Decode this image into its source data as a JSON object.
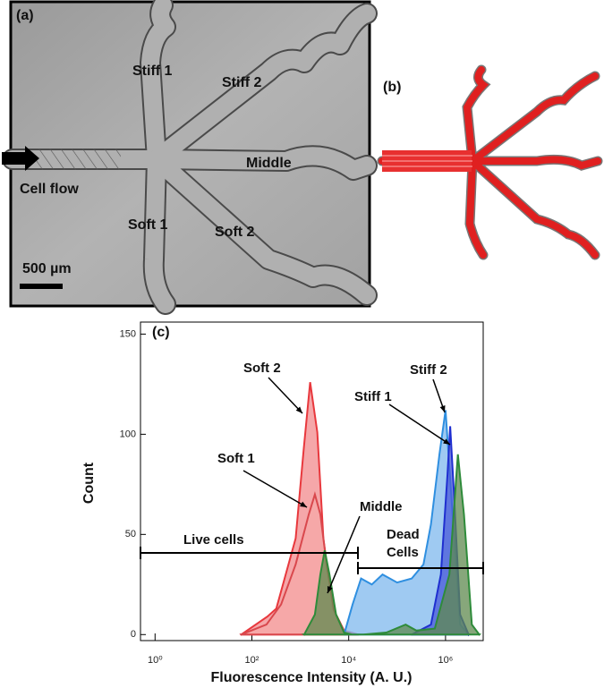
{
  "panels": {
    "a": {
      "label": "(a)",
      "texts": [
        "Stiff 1",
        "Stiff 2",
        "Middle",
        "Cell flow",
        "Soft 1",
        "Soft 2",
        "500 µm"
      ]
    },
    "b": {
      "label": "(b)"
    }
  },
  "chart_data": {
    "type": "area",
    "label": "(c)",
    "x_label": "Fluorescence Intensity (A. U.)",
    "y_label": "Count",
    "xscale": "log",
    "xlim": [
      0.5,
      6000000
    ],
    "ylim": [
      -3,
      156
    ],
    "xticks": [
      {
        "value": 1,
        "label": "10⁰"
      },
      {
        "value": 100,
        "label": "10²"
      },
      {
        "value": 10000,
        "label": "10⁴"
      },
      {
        "value": 1000000,
        "label": "10⁶"
      }
    ],
    "yticks": [
      0,
      50,
      100,
      150
    ],
    "series": [
      {
        "name": "Soft 2",
        "color": "#e8383d",
        "fill": "#f28a8c",
        "x": [
          60,
          210,
          320,
          800,
          1180,
          1600,
          2250,
          3000,
          4700,
          8000,
          16000
        ],
        "values": [
          0,
          9,
          13,
          48,
          93,
          126,
          101,
          48,
          13,
          2,
          0
        ]
      },
      {
        "name": "Soft 1",
        "color": "#d9484d",
        "fill": "#f5a8a8",
        "x": [
          60,
          200,
          400,
          800,
          1500,
          2000,
          2600,
          3500,
          5000,
          8000,
          15000
        ],
        "values": [
          0,
          5,
          15,
          35,
          60,
          70,
          60,
          35,
          12,
          2,
          0
        ]
      },
      {
        "name": "Stiff 2",
        "color": "#2f8fe0",
        "fill": "#7fb8ee",
        "x": [
          8000,
          12000,
          18000,
          30000,
          50000,
          100000,
          200000,
          350000,
          500000,
          750000,
          1000000,
          1400000,
          2000000,
          3000000
        ],
        "values": [
          0,
          15,
          28,
          25,
          30,
          26,
          28,
          35,
          55,
          90,
          112,
          60,
          5,
          0
        ]
      },
      {
        "name": "Stiff 1",
        "color": "#1f2fd0",
        "fill": "#4a5ad8",
        "x": [
          200000,
          500000,
          800000,
          1100000,
          1250000,
          1500000,
          2000000,
          3000000
        ],
        "values": [
          0,
          5,
          30,
          80,
          104,
          70,
          10,
          0
        ]
      },
      {
        "name": "Middle",
        "color": "#2e8b3a",
        "fill": "#5f8a4f",
        "x": [
          1200,
          2000,
          2600,
          3200,
          4000,
          5500,
          8000,
          12000,
          20000,
          60000,
          150000,
          250000,
          600000,
          1200000,
          1800000,
          2400000,
          3500000,
          5000000
        ],
        "values": [
          0,
          10,
          30,
          42,
          30,
          10,
          1,
          0,
          0,
          1,
          5,
          2,
          3,
          30,
          90,
          60,
          5,
          0
        ]
      }
    ],
    "annotations": [
      "Soft 2",
      "Soft 1",
      "Middle",
      "Stiff 1",
      "Stiff 2",
      "Live cells",
      "Dead Cells"
    ]
  }
}
